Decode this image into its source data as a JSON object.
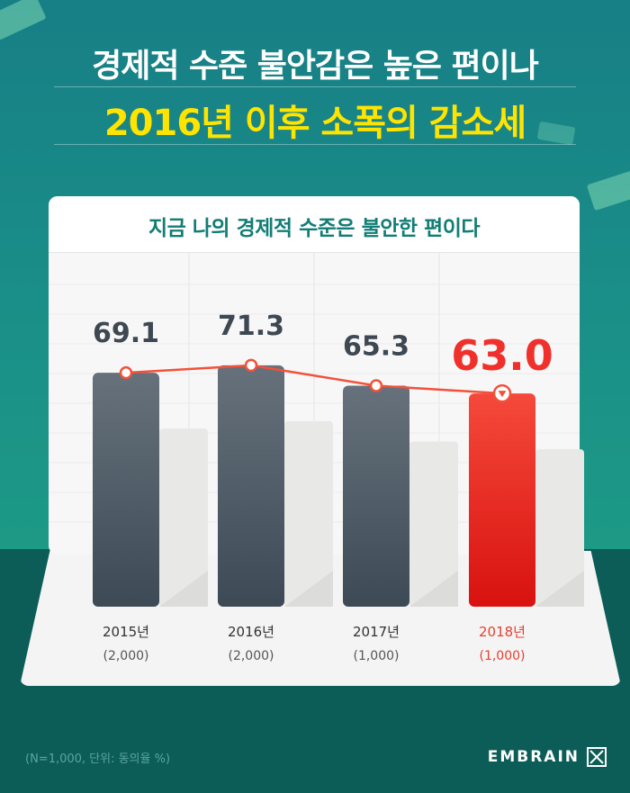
{
  "headline": {
    "line1": "경제적 수준 불안감은 높은 편이나",
    "line2": "2016년 이후 소폭의 감소세"
  },
  "colors": {
    "background": "#1a8f88",
    "headline_accent": "#ffe400",
    "bar_past": "#4f5b66",
    "bar_current": "#f0302a",
    "trend_line": "#f2513a",
    "panel_title": "#127d76"
  },
  "chart_data": {
    "type": "bar",
    "title": "지금 나의 경제적 수준은 불안한 편이다",
    "categories": [
      "2015년",
      "2016년",
      "2017년",
      "2018년"
    ],
    "sample_sizes": [
      "(2,000)",
      "(2,000)",
      "(1,000)",
      "(1,000)"
    ],
    "values": [
      69.1,
      71.3,
      65.3,
      63.0
    ],
    "value_labels": [
      "69.1",
      "71.3",
      "65.3",
      "63.0"
    ],
    "highlight_index": 3,
    "overlay_line": true,
    "grid": true
  },
  "footnote": "(N=1,000, 단위: 동의율 %)",
  "brand": {
    "name": "EMBRAIN",
    "logo_icon": "embrain-logo-icon"
  }
}
